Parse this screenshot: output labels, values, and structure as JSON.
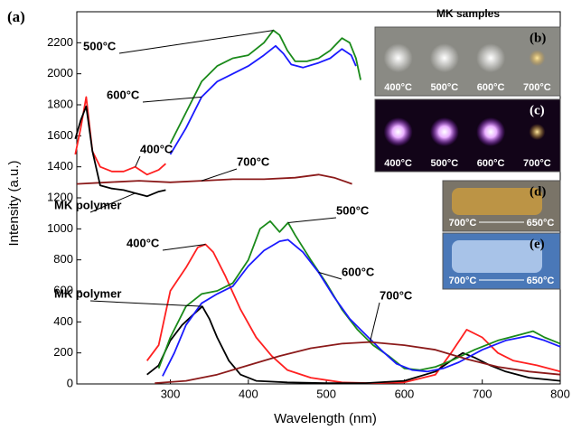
{
  "chart_data": {
    "type": "line",
    "panel_label": "(a)",
    "x_label": "Wavelength (nm)",
    "y_label": "Intensity (a.u.)",
    "xlim": [
      180,
      800
    ],
    "ylim": [
      0,
      2400
    ],
    "xticks": [
      300,
      400,
      500,
      600,
      700,
      800
    ],
    "yticks": [
      0,
      200,
      400,
      600,
      800,
      1000,
      1200,
      1400,
      1600,
      1800,
      2000,
      2200
    ],
    "series": [
      {
        "name": "500°C",
        "color": "#1a8a1a",
        "x": [
          300,
          320,
          340,
          360,
          380,
          400,
          420,
          432,
          440,
          450,
          460,
          475,
          490,
          505,
          520,
          530,
          538,
          544
        ],
        "values": [
          1550,
          1750,
          1950,
          2050,
          2100,
          2120,
          2200,
          2280,
          2250,
          2150,
          2080,
          2080,
          2100,
          2150,
          2230,
          2200,
          2100,
          1960
        ]
      },
      {
        "name": "600°C",
        "color": "#1a1aff",
        "x": [
          300,
          320,
          340,
          360,
          380,
          400,
          420,
          435,
          445,
          455,
          470,
          490,
          505,
          520,
          532,
          538
        ],
        "values": [
          1480,
          1650,
          1850,
          1950,
          2000,
          2050,
          2120,
          2180,
          2130,
          2060,
          2040,
          2070,
          2100,
          2160,
          2120,
          2050
        ]
      },
      {
        "name": "400°C",
        "color": "#ff2020",
        "x": [
          178,
          185,
          192,
          200,
          210,
          225,
          240,
          255,
          270,
          285,
          294
        ],
        "values": [
          1480,
          1650,
          1850,
          1500,
          1400,
          1370,
          1370,
          1400,
          1350,
          1380,
          1420
        ]
      },
      {
        "name": "700°C",
        "color": "#8b1a1a",
        "x": [
          180,
          220,
          260,
          300,
          340,
          380,
          420,
          460,
          490,
          510,
          533
        ],
        "values": [
          1290,
          1300,
          1310,
          1300,
          1310,
          1320,
          1320,
          1330,
          1350,
          1330,
          1290
        ]
      },
      {
        "name": "MK polymer",
        "color": "#000000",
        "x": [
          178,
          185,
          192,
          200,
          210,
          225,
          240,
          255,
          270,
          285,
          294
        ],
        "values": [
          1580,
          1700,
          1790,
          1500,
          1280,
          1260,
          1250,
          1230,
          1210,
          1240,
          1250
        ]
      },
      {
        "name": "400°C",
        "color": "#ff2020",
        "x": [
          270,
          285,
          300,
          320,
          335,
          345,
          355,
          370,
          390,
          410,
          430,
          450,
          480,
          520,
          560,
          600,
          640,
          660,
          680,
          700,
          720,
          740,
          770,
          800
        ],
        "values": [
          150,
          250,
          600,
          750,
          880,
          900,
          850,
          700,
          480,
          300,
          180,
          90,
          40,
          10,
          5,
          10,
          60,
          200,
          350,
          300,
          200,
          150,
          120,
          80
        ]
      },
      {
        "name": "MK polymer",
        "color": "#000000",
        "x": [
          270,
          285,
          300,
          315,
          330,
          341,
          350,
          360,
          375,
          390,
          410,
          450,
          500,
          550,
          600,
          640,
          660,
          675,
          690,
          710,
          730,
          760,
          800
        ],
        "values": [
          60,
          120,
          280,
          380,
          450,
          500,
          420,
          300,
          150,
          60,
          20,
          10,
          5,
          5,
          20,
          80,
          150,
          200,
          170,
          120,
          80,
          40,
          20
        ]
      },
      {
        "name": "500°C",
        "color": "#1a8a1a",
        "x": [
          285,
          300,
          320,
          340,
          360,
          380,
          400,
          415,
          428,
          440,
          451,
          460,
          480,
          500,
          520,
          540,
          560,
          580,
          600,
          620,
          640,
          660,
          690,
          720,
          750,
          765,
          780,
          800
        ],
        "values": [
          100,
          300,
          500,
          580,
          600,
          650,
          800,
          1000,
          1050,
          980,
          1040,
          960,
          800,
          650,
          480,
          350,
          250,
          180,
          100,
          90,
          110,
          150,
          220,
          280,
          320,
          340,
          300,
          260
        ]
      },
      {
        "name": "600°C",
        "color": "#1a1aff",
        "x": [
          290,
          305,
          320,
          340,
          360,
          380,
          400,
          420,
          440,
          451,
          470,
          490,
          510,
          530,
          550,
          570,
          590,
          610,
          630,
          650,
          670,
          700,
          730,
          760,
          780,
          800
        ],
        "values": [
          50,
          200,
          380,
          520,
          580,
          630,
          760,
          860,
          920,
          930,
          850,
          720,
          560,
          420,
          320,
          220,
          130,
          90,
          80,
          100,
          140,
          220,
          280,
          310,
          280,
          240
        ]
      },
      {
        "name": "700°C",
        "color": "#8b1a1a",
        "x": [
          280,
          320,
          360,
          400,
          440,
          480,
          520,
          556,
          600,
          640,
          680,
          720,
          760,
          800
        ],
        "values": [
          5,
          20,
          60,
          120,
          180,
          230,
          260,
          270,
          250,
          220,
          160,
          110,
          80,
          60
        ]
      }
    ]
  },
  "insets": {
    "title": "MK samples",
    "panels": [
      {
        "label": "(b)",
        "temps": [
          "400°C",
          "500°C",
          "600°C",
          "700°C"
        ]
      },
      {
        "label": "(c)",
        "temps": [
          "400°C",
          "500°C",
          "600°C",
          "700°C"
        ]
      },
      {
        "label": "(d)",
        "temps": [
          "700°C",
          "650°C"
        ]
      },
      {
        "label": "(e)",
        "temps": [
          "700°C",
          "650°C"
        ]
      }
    ]
  }
}
